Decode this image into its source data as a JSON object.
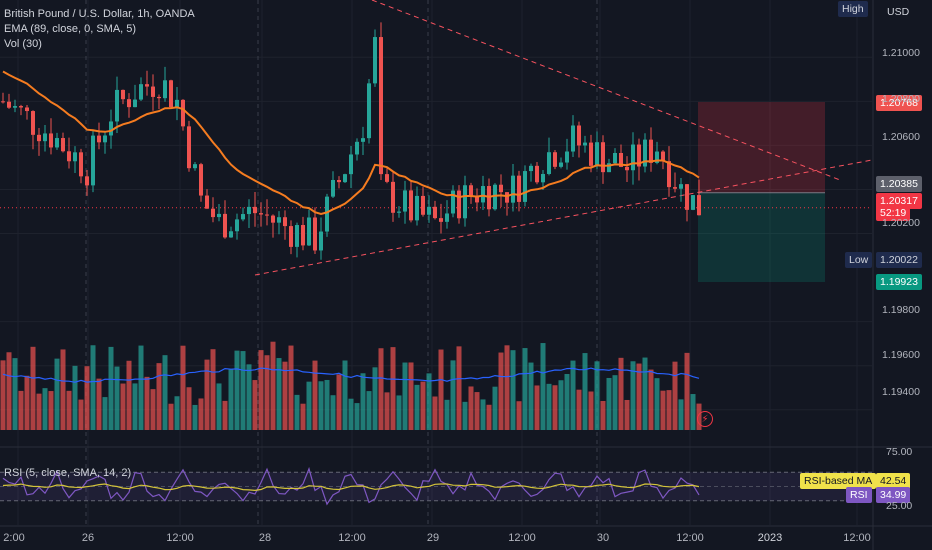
{
  "legend": {
    "symbol": "British Pound / U.S. Dollar, 1h, OANDA",
    "ema": "EMA (89, close, 0, SMA, 5)",
    "vol": "Vol (30)",
    "rsi": "RSI (5, close, SMA, 14, 2)"
  },
  "axis": {
    "currency": "USD",
    "price_ticks": [
      "1.21000",
      "1.20800",
      "1.20600",
      "1.20200",
      "1.19800",
      "1.19600",
      "1.19400"
    ],
    "rsi_ticks": [
      "75.00",
      "25.00"
    ],
    "time_ticks": [
      "2:00",
      "26",
      "12:00",
      "28",
      "12:00",
      "29",
      "12:00",
      "30",
      "12:00",
      "2023",
      "12:00"
    ]
  },
  "price_tags": {
    "high_label": "High",
    "low_label": "Low",
    "low_value": "1.20022",
    "stop_value": "1.20768",
    "entry_value": "1.20385",
    "last_value": "1.20317",
    "countdown": "52:19",
    "target_value": "1.19923"
  },
  "rsi_tags": {
    "ma_label": "RSI-based MA",
    "ma_value": "42.54",
    "rsi_label": "RSI",
    "rsi_value": "34.99"
  },
  "colors": {
    "background": "#131722",
    "up": "#26a69a",
    "down": "#ef5350",
    "ema": "#f57c20",
    "rsi": "#7e57c2",
    "rsi_ma": "#d4c43a",
    "vol_ma": "#2962ff",
    "trendline": "#f7525f"
  },
  "chart_data": {
    "type": "candlestick",
    "instrument": "British Pound / U.S. Dollar",
    "interval": "1h",
    "ema_period": 89,
    "ylim": [
      1.1924,
      1.2126
    ],
    "rsi_ylim": [
      0,
      100
    ],
    "rsi_levels": [
      75,
      25
    ],
    "last_price": 1.20317,
    "rsi_last": 34.99,
    "rsi_ma_last": 42.54,
    "range_high": 1.20768,
    "range_low": 1.20022
  }
}
